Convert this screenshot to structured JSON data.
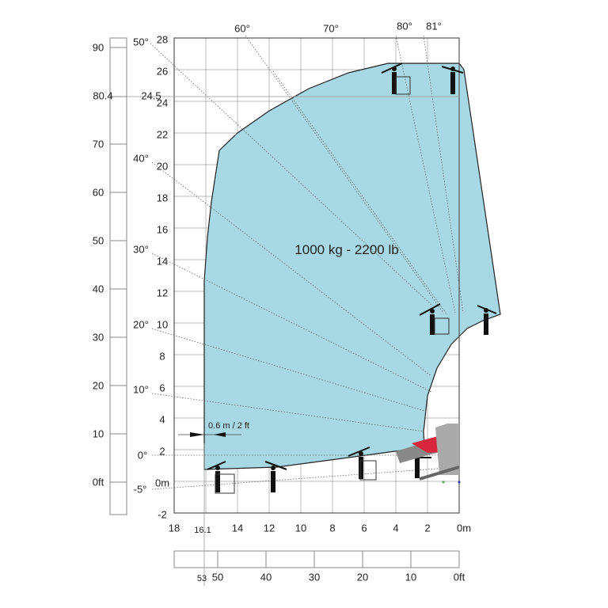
{
  "load_label": "1000 kg - 2200 lb",
  "offset_label": "0.6 m / 2 ft",
  "y_axis_m": [
    "28",
    "26",
    "24",
    "22",
    "20",
    "18",
    "16",
    "14",
    "12",
    "10",
    "8",
    "6",
    "4",
    "2",
    "0m",
    "-2"
  ],
  "y_axis_ft": [
    "90",
    "70",
    "60",
    "50",
    "40",
    "30",
    "20",
    "10",
    "0ft"
  ],
  "y_marker_ft": "80.4",
  "y_marker_m": "24.5",
  "x_axis_m": [
    "18",
    "14",
    "12",
    "10",
    "8",
    "6",
    "4",
    "2",
    "0m"
  ],
  "x_marker_m": "16.1",
  "x_axis_ft": [
    "50",
    "40",
    "30",
    "20",
    "10",
    "0ft"
  ],
  "x_marker_ft": "53",
  "angles": [
    "50°",
    "60°",
    "70°",
    "80°",
    "81°",
    "40°",
    "30°",
    "20°",
    "10°",
    "0°",
    "-5°"
  ],
  "colors": {
    "envelope": "#a7d8e3",
    "machine": "#d7263d",
    "grid": "#bbbbbb"
  }
}
